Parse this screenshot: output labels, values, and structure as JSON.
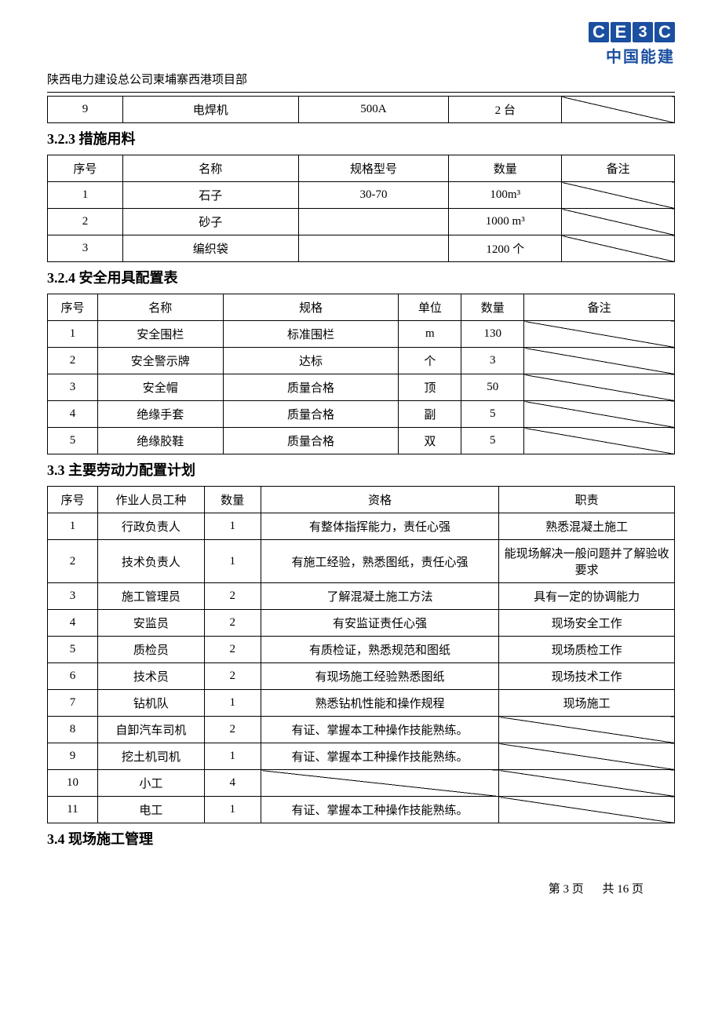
{
  "org_header": "陕西电力建设总公司柬埔寨西港项目部",
  "logo": {
    "letters": [
      "C",
      "E",
      "3",
      "C"
    ],
    "text": "中国能建"
  },
  "table_top": {
    "col_widths": [
      "12%",
      "28%",
      "24%",
      "18%",
      "18%"
    ],
    "rows": [
      {
        "c0": "9",
        "c1": "电焊机",
        "c2": "500A",
        "c3": "2 台",
        "c4_diag": true
      }
    ]
  },
  "sec_323": {
    "title": "3.2.3 措施用料",
    "col_widths": [
      "12%",
      "28%",
      "24%",
      "18%",
      "18%"
    ],
    "headers": [
      "序号",
      "名称",
      "规格型号",
      "数量",
      "备注"
    ],
    "rows": [
      {
        "c0": "1",
        "c1": "石子",
        "c2": "30-70",
        "c3": "100m³",
        "c4_diag": true
      },
      {
        "c0": "2",
        "c1": "砂子",
        "c2": "",
        "c3": "1000 m³",
        "c4_diag": true
      },
      {
        "c0": "3",
        "c1": "编织袋",
        "c2": "",
        "c3": "1200 个",
        "c4_diag": true
      }
    ]
  },
  "sec_324": {
    "title": "3.2.4 安全用具配置表",
    "col_widths": [
      "8%",
      "20%",
      "28%",
      "10%",
      "10%",
      "24%"
    ],
    "headers": [
      "序号",
      "名称",
      "规格",
      "单位",
      "数量",
      "备注"
    ],
    "rows": [
      {
        "c0": "1",
        "c1": "安全围栏",
        "c2": "标准围栏",
        "c3": "m",
        "c4": "130",
        "c5_diag": true
      },
      {
        "c0": "2",
        "c1": "安全警示牌",
        "c2": "达标",
        "c3": "个",
        "c4": "3",
        "c5_diag": true
      },
      {
        "c0": "3",
        "c1": "安全帽",
        "c2": "质量合格",
        "c3": "顶",
        "c4": "50",
        "c5_diag": true
      },
      {
        "c0": "4",
        "c1": "绝缘手套",
        "c2": "质量合格",
        "c3": "副",
        "c4": "5",
        "c5_diag": true
      },
      {
        "c0": "5",
        "c1": "绝缘胶鞋",
        "c2": "质量合格",
        "c3": "双",
        "c4": "5",
        "c5_diag": true
      }
    ]
  },
  "sec_33": {
    "title": "3.3 主要劳动力配置计划",
    "col_widths": [
      "8%",
      "17%",
      "9%",
      "38%",
      "28%"
    ],
    "headers": [
      "序号",
      "作业人员工种",
      "数量",
      "资格",
      "职责"
    ],
    "rows": [
      {
        "c0": "1",
        "c1": "行政负责人",
        "c2": "1",
        "c3": "有整体指挥能力，责任心强",
        "c4": "熟悉混凝土施工"
      },
      {
        "c0": "2",
        "c1": "技术负责人",
        "c2": "1",
        "c3": "有施工经验，熟悉图纸，责任心强",
        "c4": "能现场解决一般问题并了解验收要求"
      },
      {
        "c0": "3",
        "c1": "施工管理员",
        "c2": "2",
        "c3": "了解混凝土施工方法",
        "c4": "具有一定的协调能力"
      },
      {
        "c0": "4",
        "c1": "安监员",
        "c2": "2",
        "c3": "有安监证责任心强",
        "c4": "现场安全工作"
      },
      {
        "c0": "5",
        "c1": "质检员",
        "c2": "2",
        "c3": "有质检证，熟悉规范和图纸",
        "c4": "现场质检工作"
      },
      {
        "c0": "6",
        "c1": "技术员",
        "c2": "2",
        "c3": "有现场施工经验熟悉图纸",
        "c4": "现场技术工作"
      },
      {
        "c0": "7",
        "c1": "钻机队",
        "c2": "1",
        "c3": "熟悉钻机性能和操作规程",
        "c4": "现场施工"
      },
      {
        "c0": "8",
        "c1": "自卸汽车司机",
        "c2": "2",
        "c3": "有证、掌握本工种操作技能熟练。",
        "c4_diag": true
      },
      {
        "c0": "9",
        "c1": "挖土机司机",
        "c2": "1",
        "c3": "有证、掌握本工种操作技能熟练。",
        "c4_diag": true
      },
      {
        "c0": "10",
        "c1": "小工",
        "c2": "4",
        "c3_diag": true,
        "c4_diag": true
      },
      {
        "c0": "11",
        "c1": "电工",
        "c2": "1",
        "c3": "有证、掌握本工种操作技能熟练。",
        "c4_diag": true
      }
    ]
  },
  "sec_34": {
    "title": "3.4 现场施工管理"
  },
  "footer": {
    "page": "第 3 页",
    "total": "共 16 页"
  }
}
